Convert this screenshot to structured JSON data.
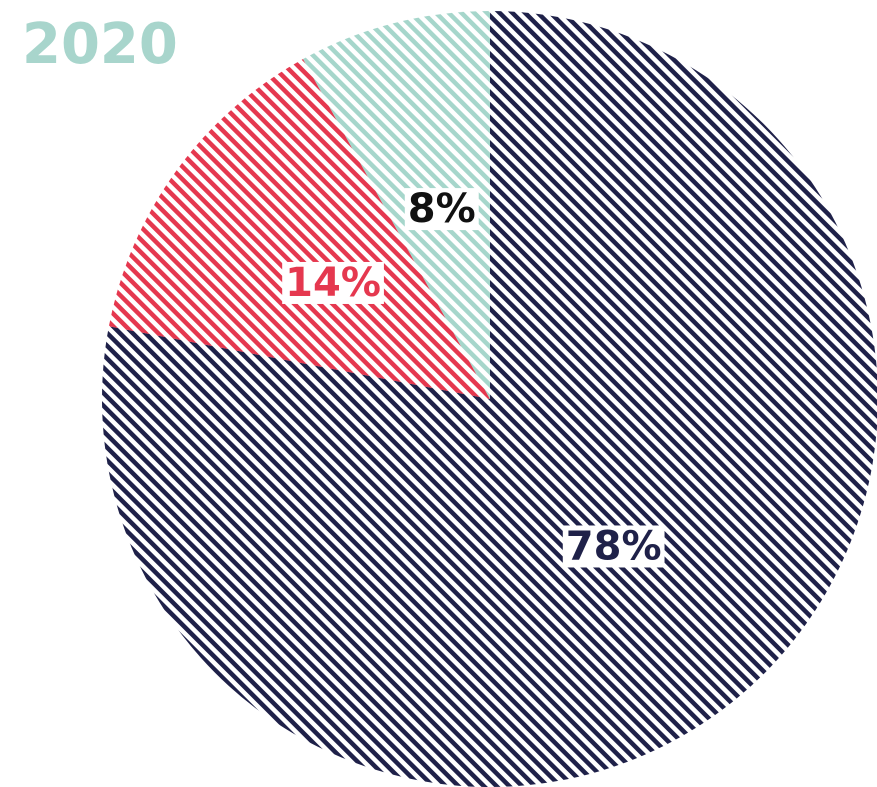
{
  "chart_data": {
    "type": "pie",
    "title": "2020",
    "values": [
      78,
      14,
      8
    ],
    "value_labels": [
      "78%",
      "14%",
      "8%"
    ],
    "colors": [
      "#1f2149",
      "#e5384f",
      "#a6d6cb"
    ],
    "label_colors": [
      "#1f2149",
      "#e5384f",
      "#111111"
    ],
    "title_color": "#a8d5cc"
  }
}
